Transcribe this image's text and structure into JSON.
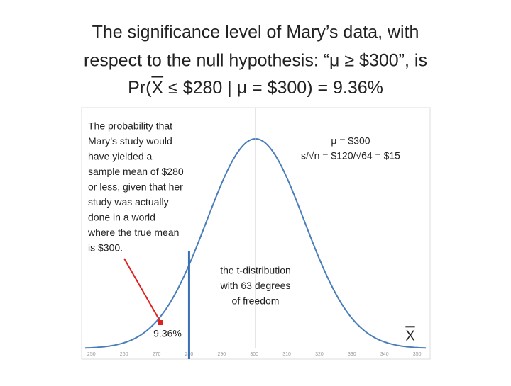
{
  "title": [
    "The significance level of Mary’s data, with",
    "respect to the null hypothesis: “μ ≥ $300”, is"
  ],
  "formula": {
    "prefix": "Pr(",
    "variable": "X",
    "rest": "≤ $280 | μ = $300) = 9.36%"
  },
  "chart_data": {
    "type": "t-distribution",
    "description": [
      "The probability that",
      "Mary’s study would",
      "have yielded a",
      "sample mean of $280",
      "or less, given that her",
      "study was actually",
      "done in a world",
      "where the true  mean",
      "is $300."
    ],
    "parameters": [
      "μ = $300",
      "s/√n = $120/√64 = $15"
    ],
    "distribution_label": [
      "the t-distribution",
      "with 63 degrees",
      "of freedom"
    ],
    "tail_label": "9.36%",
    "axis_label": "X",
    "xlim": [
      247,
      354
    ],
    "xticks": [
      250,
      260,
      270,
      280,
      290,
      300,
      310,
      320,
      330,
      340,
      350
    ]
  }
}
